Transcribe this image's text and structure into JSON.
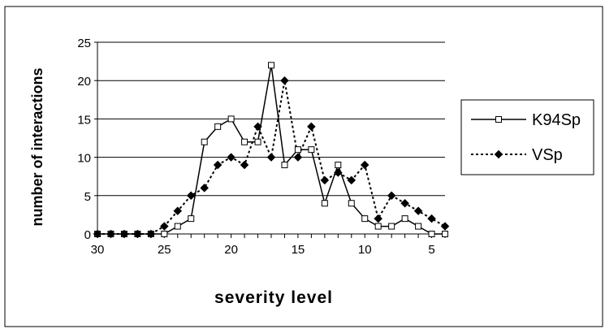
{
  "chart_data": {
    "type": "line",
    "xlabel": "severity level",
    "ylabel": "number of interactions",
    "x": [
      30,
      29,
      28,
      27,
      26,
      25,
      24,
      23,
      22,
      21,
      20,
      19,
      18,
      17,
      16,
      15,
      14,
      13,
      12,
      11,
      10,
      9,
      8,
      7,
      6,
      5,
      4
    ],
    "xlim": [
      30,
      4
    ],
    "x_reversed": true,
    "xticks": [
      "30",
      "25",
      "20",
      "15",
      "10",
      "5"
    ],
    "ylim": [
      0,
      25
    ],
    "yticks": [
      "0",
      "5",
      "10",
      "15",
      "20",
      "25"
    ],
    "grid": "horizontal",
    "legend_position": "right",
    "series": [
      {
        "name": "K94Sp",
        "line_style": "solid",
        "marker": "open-square",
        "values": [
          0,
          0,
          0,
          0,
          0,
          0,
          1,
          2,
          12,
          14,
          15,
          12,
          12,
          22,
          9,
          11,
          11,
          4,
          9,
          4,
          2,
          1,
          1,
          2,
          1,
          0,
          0
        ]
      },
      {
        "name": "VSp",
        "line_style": "dashed",
        "marker": "filled-diamond",
        "values": [
          0,
          0,
          0,
          0,
          0,
          1,
          3,
          5,
          6,
          9,
          10,
          9,
          14,
          10,
          20,
          10,
          14,
          7,
          8,
          7,
          9,
          2,
          5,
          4,
          3,
          2,
          1
        ]
      }
    ]
  }
}
